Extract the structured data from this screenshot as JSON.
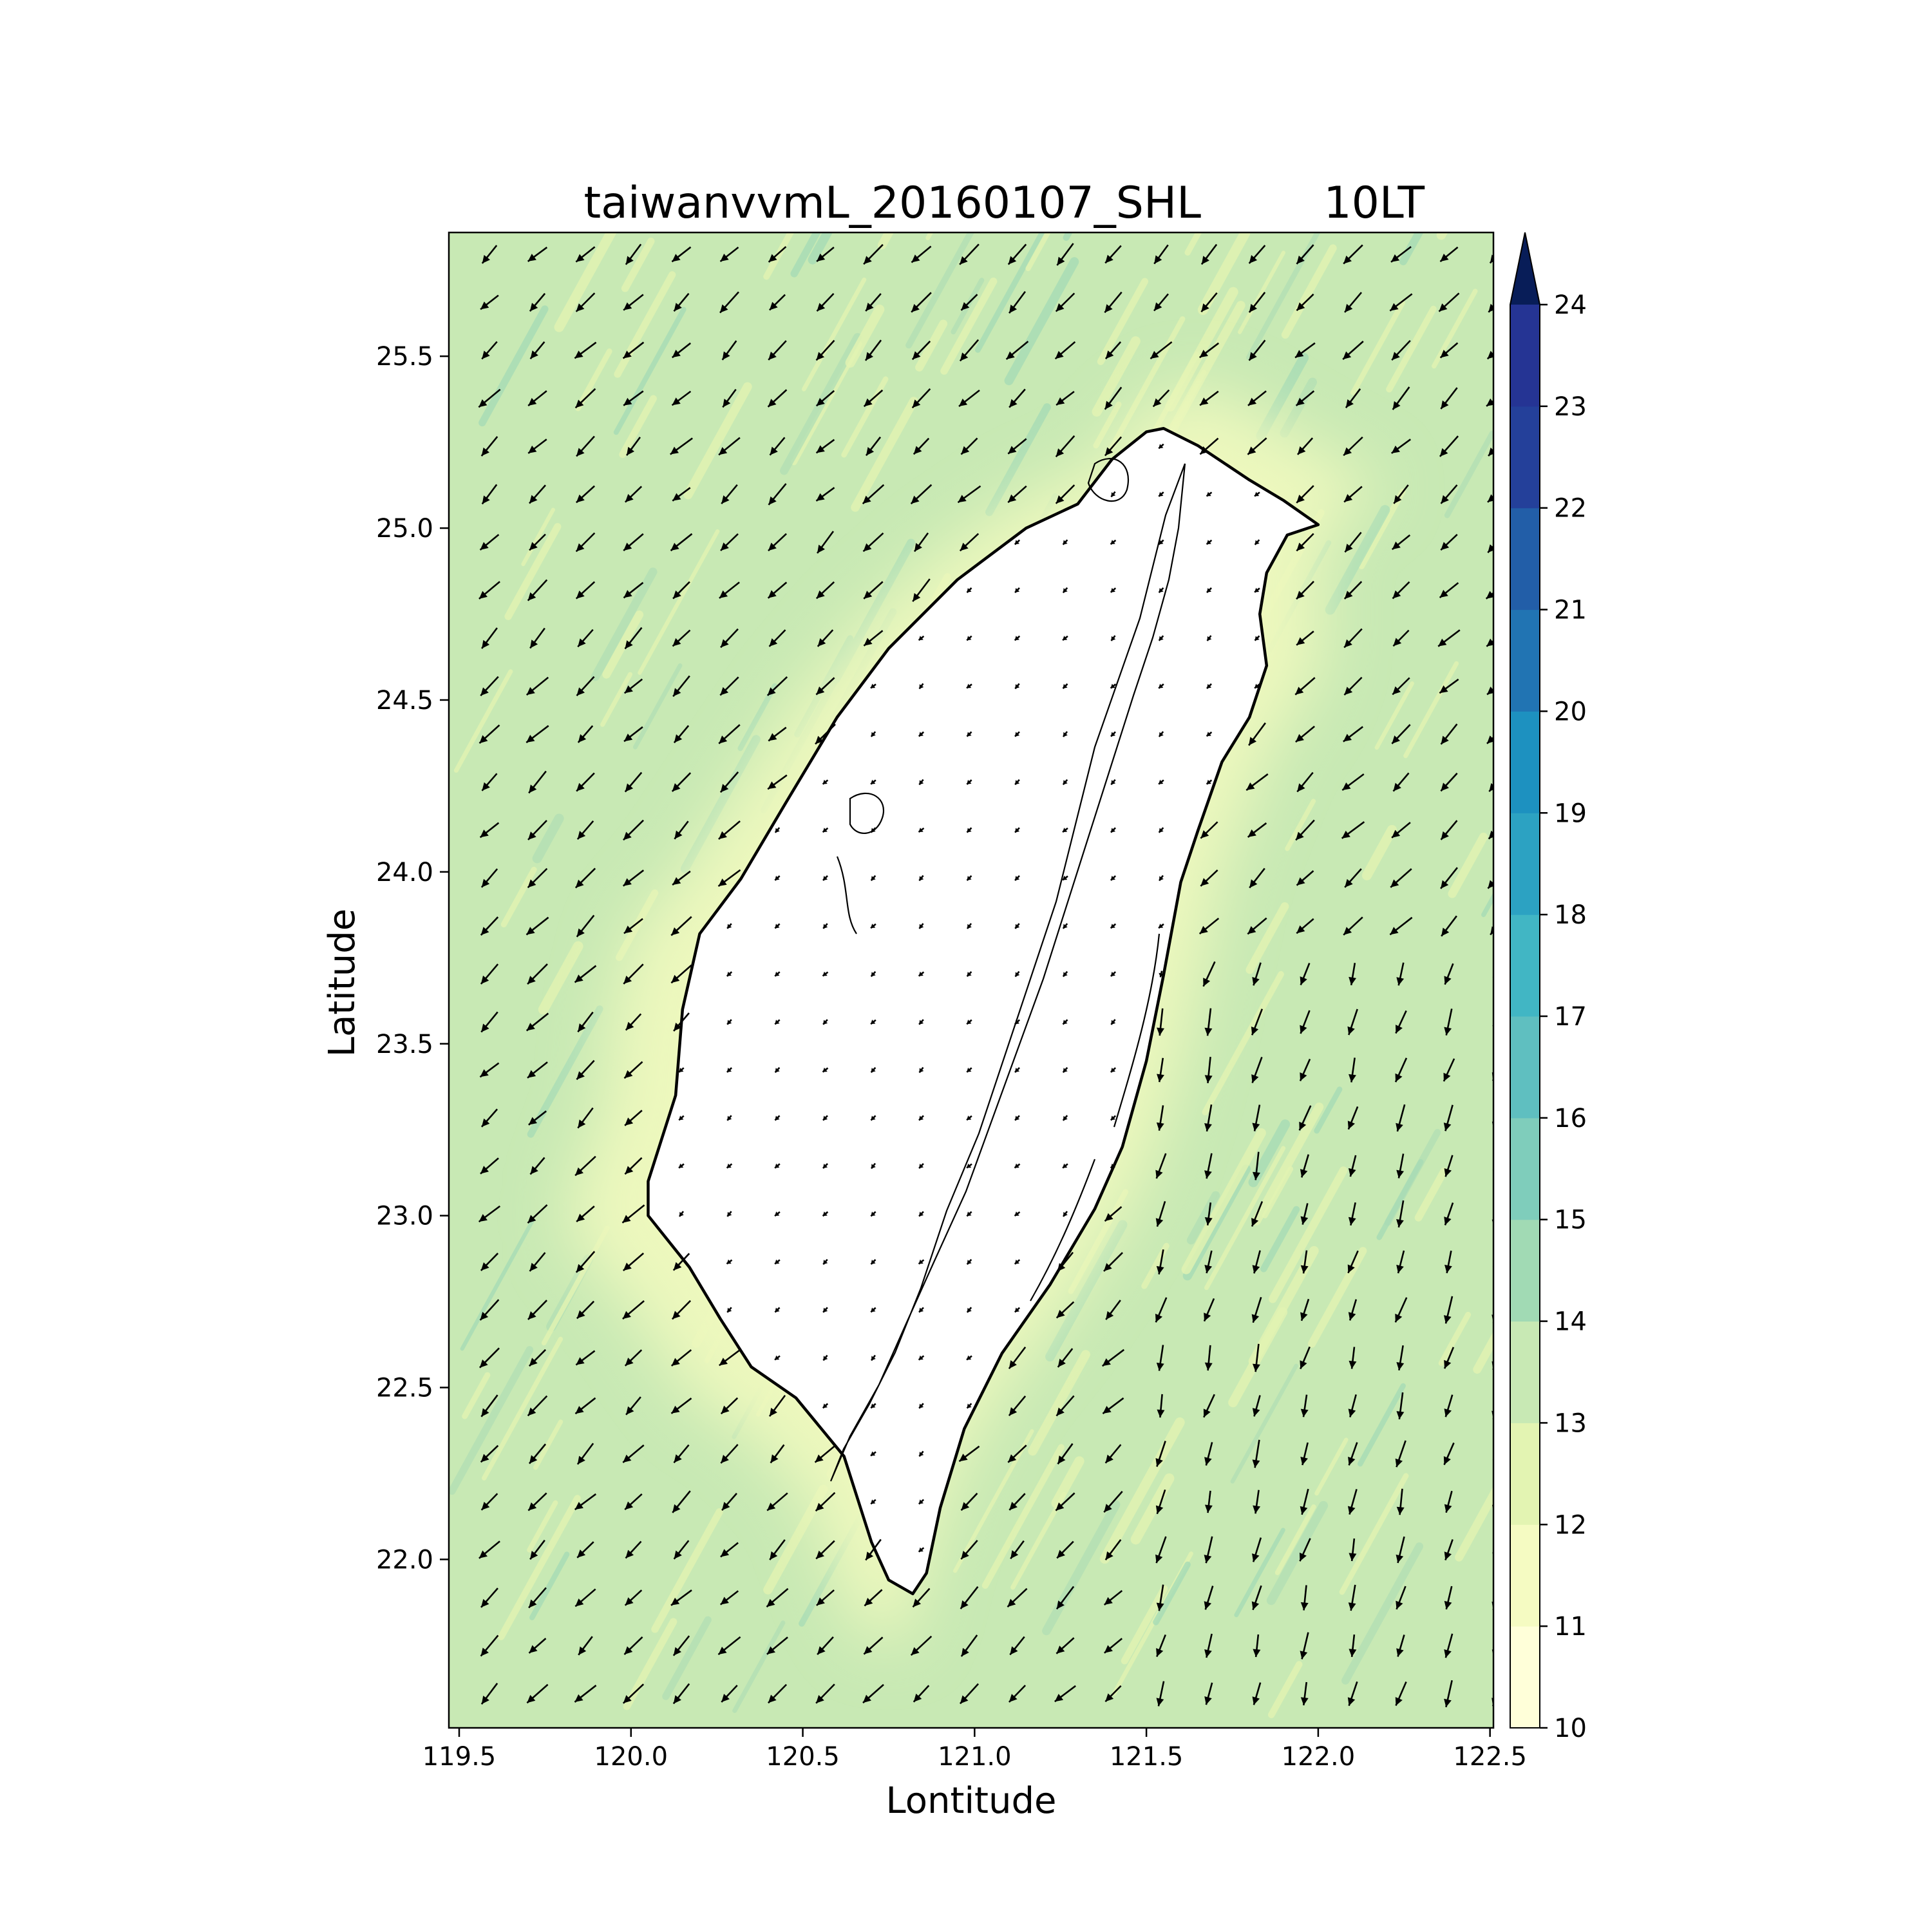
{
  "figure": {
    "title_left": "taiwanvvmL_20160107_SHL",
    "title_right": "10LT",
    "xlabel": "Lontitude",
    "ylabel": "Latitude"
  },
  "map": {
    "region": "Taiwan",
    "xlim": [
      119.47,
      122.51
    ],
    "ylim": [
      21.51,
      25.86
    ],
    "xticks": [
      119.5,
      120.0,
      120.5,
      121.0,
      121.5,
      122.0,
      122.5
    ],
    "yticks": [
      22.0,
      22.5,
      23.0,
      23.5,
      24.0,
      24.5,
      25.0,
      25.5
    ],
    "xtick_labels": [
      "119.5",
      "120.0",
      "120.5",
      "121.0",
      "121.5",
      "122.0",
      "122.5"
    ],
    "ytick_labels": [
      "22.0",
      "22.5",
      "23.0",
      "23.5",
      "24.0",
      "24.5",
      "25.0",
      "25.5"
    ],
    "field_range_ocean": "12-14",
    "field_range_land": "below 10",
    "wind_prevailing_direction": "northeasterly",
    "coastline": [
      [
        121.55,
        25.29
      ],
      [
        121.65,
        25.24
      ],
      [
        121.8,
        25.14
      ],
      [
        121.9,
        25.08
      ],
      [
        122.0,
        25.01
      ],
      [
        121.91,
        24.98
      ],
      [
        121.85,
        24.87
      ],
      [
        121.83,
        24.75
      ],
      [
        121.85,
        24.6
      ],
      [
        121.8,
        24.45
      ],
      [
        121.72,
        24.32
      ],
      [
        121.65,
        24.12
      ],
      [
        121.6,
        23.97
      ],
      [
        121.55,
        23.7
      ],
      [
        121.5,
        23.45
      ],
      [
        121.43,
        23.2
      ],
      [
        121.35,
        23.02
      ],
      [
        121.22,
        22.8
      ],
      [
        121.08,
        22.6
      ],
      [
        120.97,
        22.38
      ],
      [
        120.9,
        22.15
      ],
      [
        120.86,
        21.96
      ],
      [
        120.82,
        21.9
      ],
      [
        120.75,
        21.94
      ],
      [
        120.7,
        22.05
      ],
      [
        120.62,
        22.3
      ],
      [
        120.48,
        22.47
      ],
      [
        120.35,
        22.56
      ],
      [
        120.26,
        22.7
      ],
      [
        120.17,
        22.85
      ],
      [
        120.05,
        23.0
      ],
      [
        120.05,
        23.1
      ],
      [
        120.13,
        23.35
      ],
      [
        120.15,
        23.6
      ],
      [
        120.2,
        23.82
      ],
      [
        120.32,
        23.98
      ],
      [
        120.45,
        24.2
      ],
      [
        120.6,
        24.45
      ],
      [
        120.75,
        24.65
      ],
      [
        120.95,
        24.85
      ],
      [
        121.15,
        25.0
      ],
      [
        121.3,
        25.07
      ],
      [
        121.4,
        25.2
      ],
      [
        121.5,
        25.28
      ],
      [
        121.55,
        25.29
      ]
    ]
  },
  "colorbar": {
    "min": 10,
    "max": 24,
    "extend": "max",
    "tick_labels": [
      "10",
      "11",
      "12",
      "13",
      "14",
      "15",
      "16",
      "17",
      "18",
      "19",
      "20",
      "21",
      "22",
      "23",
      "24"
    ],
    "colors": [
      "#ffffd9",
      "#f5fbc2",
      "#e3f4b2",
      "#c8e9b4",
      "#a1dab4",
      "#7fcdbb",
      "#5fbfc0",
      "#41b6c4",
      "#2ca2c2",
      "#1d91c0",
      "#2174b3",
      "#225ea8",
      "#24409a",
      "#253494",
      "#102064"
    ],
    "extend_color": "#081d58"
  },
  "colors": {
    "ocean": "#c8e9b4",
    "coastal": "#e3f4b2",
    "land": "#ffffff"
  }
}
